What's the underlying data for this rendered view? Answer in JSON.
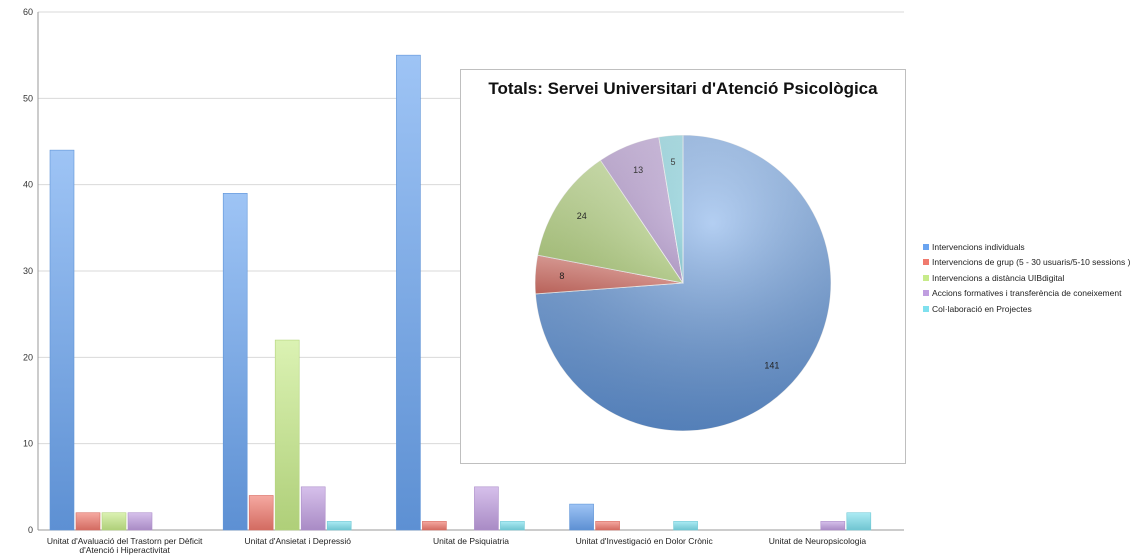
{
  "colors": {
    "series": [
      "#6aa4f0",
      "#f07a6e",
      "#c7eb8a",
      "#c09ee0",
      "#7fe0ee"
    ]
  },
  "chart_data": [
    {
      "type": "bar",
      "categories": [
        [
          "Unitat d'Avaluació del Trastorn per Dèficit",
          "d'Atenció i Hiperactivitat"
        ],
        [
          "Unitat d'Ansietat i Depressió"
        ],
        [
          "Unitat de Psiquiatria"
        ],
        [
          "Unitat d'Investigació en Dolor Crònic"
        ],
        [
          "Unitat de Neuropsicologia"
        ]
      ],
      "series": [
        {
          "name": "Intervencions individuals",
          "values": [
            44,
            39,
            55,
            3,
            0
          ]
        },
        {
          "name": "Intervencions de grup (5 - 30 usuaris/5-10 sessions )",
          "values": [
            2,
            4,
            1,
            1,
            0
          ]
        },
        {
          "name": "Intervencions a distància UIBdigital",
          "values": [
            2,
            22,
            0,
            0,
            0
          ]
        },
        {
          "name": "Accions formatives i transferència de coneixement",
          "values": [
            2,
            5,
            5,
            0,
            1
          ]
        },
        {
          "name": "Col·laboració en  Projectes",
          "values": [
            0,
            1,
            1,
            1,
            2
          ]
        }
      ],
      "ylim": [
        0,
        60
      ],
      "yticks": [
        0,
        10,
        20,
        30,
        40,
        50,
        60
      ],
      "grid": true,
      "legend": "right"
    },
    {
      "type": "pie",
      "title": "Totals: Servei Universitari d'Atenció Psicològica",
      "labels": [
        "Intervencions individuals",
        "Intervencions de grup (5 - 30 usuaris/5-10 sessions )",
        "Intervencions a distància UIBdigital",
        "Accions formatives i transferència de coneixement",
        "Col·laboració en  Projectes"
      ],
      "values": [
        141,
        8,
        24,
        13,
        5
      ]
    }
  ]
}
